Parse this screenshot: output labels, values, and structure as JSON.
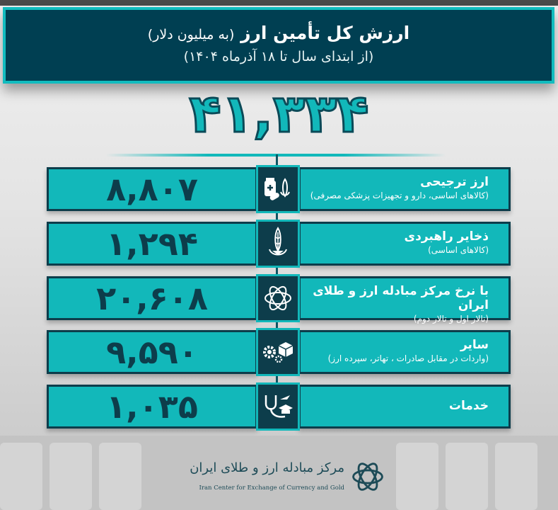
{
  "header": {
    "title": "ارزش کل تأمین ارز",
    "unit": "(به میلیون دلار)",
    "subtitle": "(از ابتدای سال تا ۱۸ آذرماه ۱۴۰۴)"
  },
  "total": "۴۱,۳۳۴",
  "colors": {
    "teal": "#12b8ba",
    "dark": "#0d3d4b",
    "header_bg": "#003f52"
  },
  "rows": [
    {
      "value": "۸,۸۰۷",
      "title": "ارز ترجیحی",
      "subtitle": "(کالاهای اساسی، دارو و تجهیزات پزشکی مصرفی)",
      "icon": "medicine-wheat-icon"
    },
    {
      "value": "۱,۲۹۴",
      "title": "ذخایر راهبردی",
      "subtitle": "(کالاهای اساسی)",
      "icon": "wheat-icon"
    },
    {
      "value": "۲۰,۶۰۸",
      "title": "با نرخ مرکز مبادله ارز و طلای ایران",
      "subtitle": "(تالار اول و تالار دوم)",
      "icon": "exchange-center-logo-icon"
    },
    {
      "value": "۹,۵۹۰",
      "title": "سایر",
      "subtitle": "(واردات در مقابل صادرات ، تهاتر، سپرده ارز)",
      "icon": "gears-box-icon"
    },
    {
      "value": "۱,۰۳۵",
      "title": "خدمات",
      "subtitle": "",
      "icon": "services-icon"
    }
  ],
  "footer": {
    "logo_fa": "مرکز مبادله ارز و طلای ایران",
    "logo_en": "Iran Center for Exchange of Currency and Gold"
  }
}
